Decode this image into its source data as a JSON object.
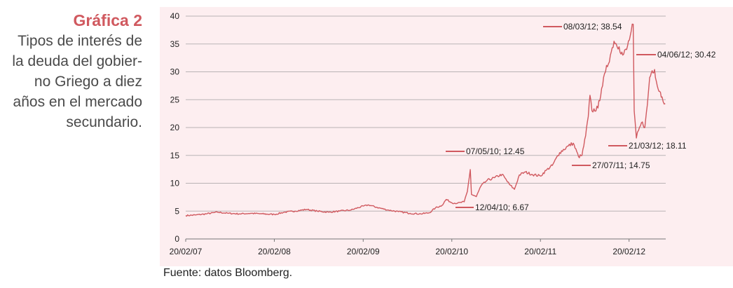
{
  "caption": {
    "label": "Gráfica 2",
    "title_lines": [
      "Tipos de interés de",
      "la deuda del gobier-",
      "no Griego a diez",
      "años en el mercado",
      "secundario."
    ]
  },
  "source": "Fuente: datos Bloomberg.",
  "colors": {
    "line": "#d0595f",
    "background": "#fdeef0",
    "grid": "#b9b3b5",
    "label": "#d0595f"
  },
  "chart_data": {
    "type": "line",
    "title": "",
    "xlabel": "",
    "ylabel": "",
    "ylim": [
      0,
      40
    ],
    "yticks": [
      0,
      5,
      10,
      15,
      20,
      25,
      30,
      35,
      40
    ],
    "xlim": [
      "2007-02-20",
      "2012-07-20"
    ],
    "xticks": [
      "20/02/07",
      "20/02/08",
      "20/02/09",
      "20/02/10",
      "20/02/11",
      "20/02/12"
    ],
    "grid": true,
    "series": [
      {
        "values": [
          [
            "2007-02-20",
            4.2
          ],
          [
            "2007-04-01",
            4.3
          ],
          [
            "2007-05-15",
            4.5
          ],
          [
            "2007-07-01",
            4.8
          ],
          [
            "2007-08-15",
            4.6
          ],
          [
            "2007-10-01",
            4.5
          ],
          [
            "2007-11-15",
            4.6
          ],
          [
            "2008-01-01",
            4.5
          ],
          [
            "2008-02-20",
            4.4
          ],
          [
            "2008-04-01",
            4.8
          ],
          [
            "2008-05-15",
            5.0
          ],
          [
            "2008-07-01",
            5.3
          ],
          [
            "2008-08-15",
            5.0
          ],
          [
            "2008-10-01",
            4.8
          ],
          [
            "2008-11-15",
            5.0
          ],
          [
            "2009-01-01",
            5.2
          ],
          [
            "2009-02-20",
            5.9
          ],
          [
            "2009-03-15",
            6.1
          ],
          [
            "2009-04-15",
            5.7
          ],
          [
            "2009-06-01",
            5.2
          ],
          [
            "2009-07-15",
            4.9
          ],
          [
            "2009-09-01",
            4.6
          ],
          [
            "2009-10-15",
            4.5
          ],
          [
            "2009-11-20",
            4.7
          ],
          [
            "2009-12-15",
            5.6
          ],
          [
            "2010-01-10",
            6.0
          ],
          [
            "2010-01-28",
            7.1
          ],
          [
            "2010-02-20",
            6.5
          ],
          [
            "2010-03-15",
            6.4
          ],
          [
            "2010-04-12",
            6.67
          ],
          [
            "2010-04-25",
            8.5
          ],
          [
            "2010-05-07",
            12.45
          ],
          [
            "2010-05-12",
            8.0
          ],
          [
            "2010-06-01",
            7.6
          ],
          [
            "2010-06-20",
            9.5
          ],
          [
            "2010-07-15",
            10.5
          ],
          [
            "2010-08-15",
            11.0
          ],
          [
            "2010-09-15",
            11.6
          ],
          [
            "2010-10-15",
            9.8
          ],
          [
            "2010-11-05",
            8.9
          ],
          [
            "2010-11-25",
            11.5
          ],
          [
            "2010-12-20",
            12.0
          ],
          [
            "2011-01-15",
            11.6
          ],
          [
            "2011-02-20",
            11.3
          ],
          [
            "2011-03-15",
            12.3
          ],
          [
            "2011-04-10",
            13.2
          ],
          [
            "2011-05-10",
            15.5
          ],
          [
            "2011-06-15",
            16.7
          ],
          [
            "2011-07-05",
            17.2
          ],
          [
            "2011-07-27",
            14.75
          ],
          [
            "2011-08-10",
            15.0
          ],
          [
            "2011-08-25",
            18.5
          ],
          [
            "2011-09-05",
            22.0
          ],
          [
            "2011-09-12",
            25.8
          ],
          [
            "2011-09-20",
            23.0
          ],
          [
            "2011-10-15",
            23.5
          ],
          [
            "2011-10-30",
            27.0
          ],
          [
            "2011-11-15",
            30.0
          ],
          [
            "2011-12-05",
            33.0
          ],
          [
            "2011-12-20",
            35.5
          ],
          [
            "2012-01-10",
            34.5
          ],
          [
            "2012-01-25",
            33.0
          ],
          [
            "2012-02-10",
            34.0
          ],
          [
            "2012-02-25",
            36.5
          ],
          [
            "2012-03-08",
            38.54
          ],
          [
            "2012-03-12",
            23.0
          ],
          [
            "2012-03-21",
            18.11
          ],
          [
            "2012-03-30",
            19.5
          ],
          [
            "2012-04-15",
            21.0
          ],
          [
            "2012-04-25",
            20.0
          ],
          [
            "2012-05-05",
            24.0
          ],
          [
            "2012-05-15",
            29.0
          ],
          [
            "2012-05-25",
            30.2
          ],
          [
            "2012-06-04",
            30.42
          ],
          [
            "2012-06-15",
            27.5
          ],
          [
            "2012-06-25",
            26.5
          ],
          [
            "2012-07-05",
            25.5
          ],
          [
            "2012-07-18",
            24.3
          ]
        ]
      }
    ],
    "annotations": [
      {
        "date": "2010-04-12",
        "value": 6.67,
        "text": "12/04/10; 6.67"
      },
      {
        "date": "2010-05-07",
        "value": 12.45,
        "text": "07/05/10; 12.45"
      },
      {
        "date": "2011-07-27",
        "value": 14.75,
        "text": "27/07/11; 14.75"
      },
      {
        "date": "2012-03-08",
        "value": 38.54,
        "text": "08/03/12; 38.54"
      },
      {
        "date": "2012-03-21",
        "value": 18.11,
        "text": "21/03/12; 18.11"
      },
      {
        "date": "2012-06-04",
        "value": 30.42,
        "text": "04/06/12; 30.42"
      }
    ]
  }
}
